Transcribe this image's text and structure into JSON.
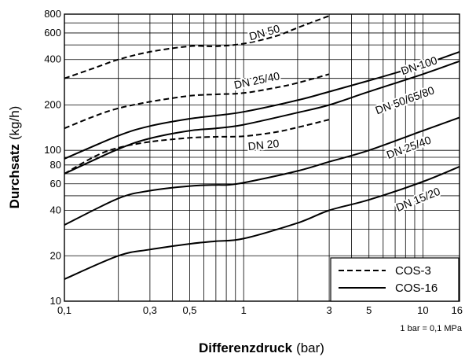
{
  "chart_data": {
    "type": "line",
    "title": "",
    "xlabel": {
      "bold": "Differenzdruck",
      "normal": "(bar)"
    },
    "ylabel": {
      "bold": "Durchsatz",
      "normal": "(kg/h)"
    },
    "x_scale": "log",
    "y_scale": "log",
    "xlim": [
      0.1,
      16
    ],
    "ylim": [
      10,
      800
    ],
    "grid": true,
    "x_ticks": [
      {
        "value": 0.1,
        "label": "0,1"
      },
      {
        "value": 0.3,
        "label": "0,3"
      },
      {
        "value": 0.5,
        "label": "0,5"
      },
      {
        "value": 1,
        "label": "1"
      },
      {
        "value": 3,
        "label": "3"
      },
      {
        "value": 5,
        "label": "5"
      },
      {
        "value": 10,
        "label": "10"
      },
      {
        "value": 16,
        "label": "16"
      }
    ],
    "x_grid": [
      0.2,
      0.3,
      0.4,
      0.5,
      0.6,
      0.7,
      0.8,
      0.9,
      1,
      2,
      3,
      4,
      5,
      6,
      7,
      8,
      9,
      10
    ],
    "y_ticks": [
      {
        "value": 10,
        "label": "10"
      },
      {
        "value": 20,
        "label": "20"
      },
      {
        "value": 40,
        "label": "40"
      },
      {
        "value": 60,
        "label": "60"
      },
      {
        "value": 80,
        "label": "80"
      },
      {
        "value": 100,
        "label": "100"
      },
      {
        "value": 200,
        "label": "200"
      },
      {
        "value": 400,
        "label": "400"
      },
      {
        "value": 600,
        "label": "600"
      },
      {
        "value": 800,
        "label": "800"
      }
    ],
    "y_grid": [
      20,
      30,
      40,
      50,
      60,
      70,
      80,
      90,
      100,
      200,
      300,
      400,
      500,
      600,
      700
    ],
    "note": "1 bar = 0,1 MPa",
    "legend": {
      "position": "bottom-right",
      "entries": [
        {
          "label": "COS-3",
          "style": "dashed"
        },
        {
          "label": "COS-16",
          "style": "solid"
        }
      ]
    },
    "series": [
      {
        "name": "DN 50",
        "style": "dashed",
        "label": "DN 50",
        "x": [
          0.1,
          0.15,
          0.2,
          0.3,
          0.5,
          0.7,
          1,
          1.5,
          2,
          3
        ],
        "y": [
          300,
          355,
          400,
          450,
          490,
          490,
          510,
          570,
          650,
          780
        ]
      },
      {
        "name": "DN 25/40",
        "style": "dashed",
        "label": "DN 25/40",
        "x": [
          0.1,
          0.15,
          0.2,
          0.3,
          0.5,
          0.7,
          1,
          1.5,
          2,
          3
        ],
        "y": [
          140,
          170,
          190,
          210,
          230,
          235,
          240,
          260,
          280,
          320
        ]
      },
      {
        "name": "DN 20",
        "style": "dashed",
        "label": "DN 20",
        "x": [
          0.1,
          0.15,
          0.2,
          0.3,
          0.5,
          0.7,
          1,
          1.5,
          2,
          3
        ],
        "y": [
          70,
          92,
          104,
          114,
          121,
          123,
          124,
          132,
          142,
          160
        ]
      },
      {
        "name": "DN 100",
        "style": "solid",
        "label": "DN 100",
        "x": [
          0.1,
          0.2,
          0.3,
          0.5,
          0.7,
          1,
          2,
          3,
          5,
          10,
          16
        ],
        "y": [
          88,
          125,
          145,
          162,
          170,
          180,
          215,
          245,
          290,
          370,
          450
        ]
      },
      {
        "name": "DN 50/65/80",
        "style": "solid",
        "label": "DN 50/65/80",
        "x": [
          0.1,
          0.2,
          0.3,
          0.5,
          0.7,
          1,
          2,
          3,
          5,
          10,
          16
        ],
        "y": [
          70,
          102,
          120,
          135,
          140,
          148,
          178,
          200,
          245,
          320,
          390
        ]
      },
      {
        "name": "DN 25/40",
        "style": "solid",
        "label": "DN 25/40",
        "x": [
          0.1,
          0.2,
          0.3,
          0.5,
          0.7,
          0.8,
          1,
          2,
          3,
          5,
          10,
          16
        ],
        "y": [
          32,
          48,
          54,
          58,
          59,
          59,
          61,
          73,
          84,
          100,
          135,
          165
        ]
      },
      {
        "name": "DN 15/20",
        "style": "solid",
        "label": "DN 15/20",
        "x": [
          0.1,
          0.2,
          0.3,
          0.5,
          0.7,
          1,
          2,
          3,
          5,
          10,
          16
        ],
        "y": [
          14,
          20,
          22,
          24,
          25,
          26,
          33,
          40,
          47,
          62,
          78
        ]
      }
    ]
  }
}
